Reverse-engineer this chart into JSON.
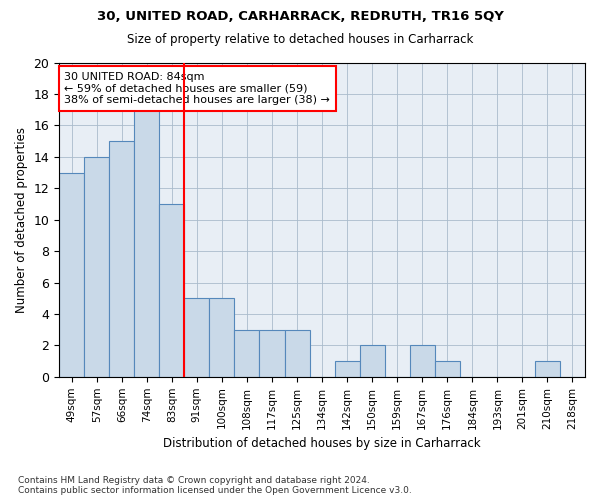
{
  "title1": "30, UNITED ROAD, CARHARRACK, REDRUTH, TR16 5QY",
  "title2": "Size of property relative to detached houses in Carharrack",
  "xlabel": "Distribution of detached houses by size in Carharrack",
  "ylabel": "Number of detached properties",
  "bar_labels": [
    "49sqm",
    "57sqm",
    "66sqm",
    "74sqm",
    "83sqm",
    "91sqm",
    "100sqm",
    "108sqm",
    "117sqm",
    "125sqm",
    "134sqm",
    "142sqm",
    "150sqm",
    "159sqm",
    "167sqm",
    "176sqm",
    "184sqm",
    "193sqm",
    "201sqm",
    "210sqm",
    "218sqm"
  ],
  "bar_values": [
    13,
    14,
    15,
    17,
    11,
    5,
    5,
    3,
    3,
    3,
    0,
    1,
    2,
    0,
    2,
    1,
    0,
    0,
    0,
    1,
    0
  ],
  "bar_color": "#c9d9e8",
  "bar_edge_color": "#5588bb",
  "red_line_x": 4.5,
  "annotation_text": "30 UNITED ROAD: 84sqm\n← 59% of detached houses are smaller (59)\n38% of semi-detached houses are larger (38) →",
  "annotation_box_color": "white",
  "annotation_box_edge": "red",
  "ylim": [
    0,
    20
  ],
  "yticks": [
    0,
    2,
    4,
    6,
    8,
    10,
    12,
    14,
    16,
    18,
    20
  ],
  "grid_color": "#aabbcc",
  "background_color": "#e8eef5",
  "footnote": "Contains HM Land Registry data © Crown copyright and database right 2024.\nContains public sector information licensed under the Open Government Licence v3.0."
}
